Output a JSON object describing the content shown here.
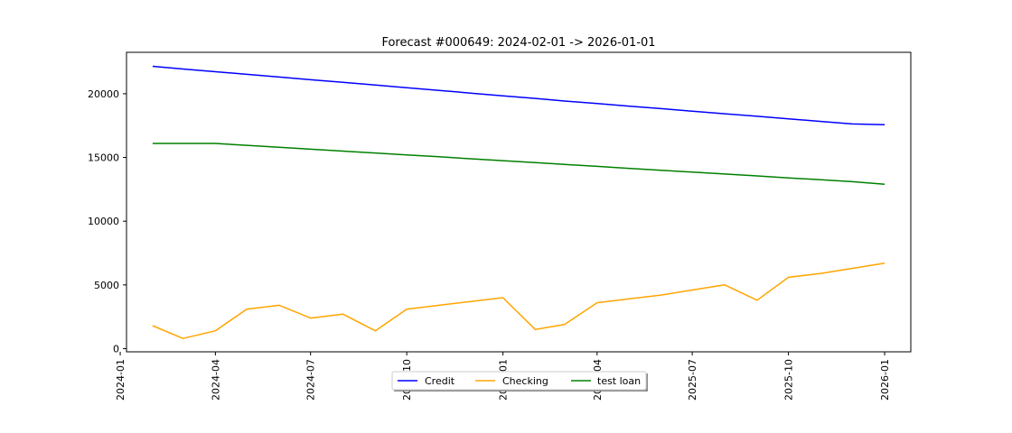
{
  "chart_data": {
    "type": "line",
    "title": "Forecast #000649: 2024-02-01 -> 2026-01-01",
    "xlabel": "",
    "ylabel": "",
    "x": [
      "2024-02-01",
      "2024-03-01",
      "2024-04-01",
      "2024-05-01",
      "2024-06-01",
      "2024-07-01",
      "2024-08-01",
      "2024-09-01",
      "2024-10-01",
      "2024-11-01",
      "2024-12-01",
      "2025-01-01",
      "2025-02-01",
      "2025-03-01",
      "2025-04-01",
      "2025-05-01",
      "2025-06-01",
      "2025-07-01",
      "2025-08-01",
      "2025-09-01",
      "2025-10-01",
      "2025-11-01",
      "2025-12-01",
      "2026-01-01"
    ],
    "series": [
      {
        "name": "Credit",
        "color": "#0000ff",
        "values": [
          22150,
          21940,
          21730,
          21520,
          21310,
          21100,
          20890,
          20680,
          20470,
          20260,
          20050,
          19840,
          19630,
          19430,
          19230,
          19030,
          18830,
          18630,
          18430,
          18230,
          18030,
          17830,
          17630,
          17570
        ]
      },
      {
        "name": "Checking",
        "color": "#ffa500",
        "values": [
          1800,
          800,
          1400,
          3100,
          3400,
          2400,
          2700,
          1400,
          3100,
          3400,
          3700,
          4000,
          1500,
          1900,
          3600,
          3900,
          4200,
          4600,
          5000,
          3800,
          5600,
          5900,
          6300,
          6700
        ]
      },
      {
        "name": "test loan",
        "color": "#008000",
        "values": [
          16100,
          16100,
          16100,
          15950,
          15800,
          15650,
          15500,
          15350,
          15200,
          15050,
          14900,
          14750,
          14600,
          14450,
          14300,
          14150,
          14000,
          13850,
          13700,
          13550,
          13400,
          13250,
          13100,
          12900
        ]
      }
    ],
    "xticks": [
      "2024-01",
      "2024-04",
      "2024-07",
      "2024-10",
      "2025-01",
      "2025-04",
      "2025-07",
      "2025-10",
      "2026-01"
    ],
    "yticks": [
      0,
      5000,
      10000,
      15000,
      20000
    ],
    "ylim": [
      -250,
      23250
    ],
    "xlim": [
      "2024-01-07",
      "2026-01-26"
    ],
    "grid": false,
    "legend_placement": "lower-center"
  }
}
